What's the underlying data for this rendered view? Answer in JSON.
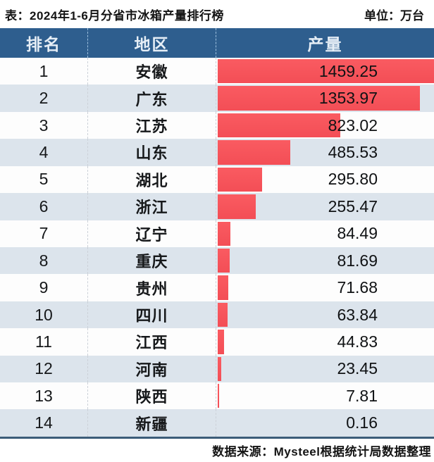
{
  "header": {
    "title": "表：2024年1-6月分省市冰箱产量排行榜",
    "unit": "单位：万台"
  },
  "table": {
    "columns": {
      "rank": "排名",
      "region": "地区",
      "output": "产量"
    }
  },
  "footer": {
    "source": "数据来源：Mysteel根据统计局数据整理"
  },
  "colors": {
    "header_bg": "#2e5e8e",
    "header_text": "#e6eef6",
    "bar_red": "#f6525a",
    "row_alt_bg": "#dce4ec",
    "row_bg": "#fdfdfd",
    "bottom_divider": "#3c5d79"
  },
  "chart_data": {
    "type": "bar",
    "orientation": "horizontal",
    "title": "2024年1-6月分省市冰箱产量排行榜",
    "unit": "万台",
    "xlim": [
      0,
      1459.25
    ],
    "legend": false,
    "grid": false,
    "categories": [
      "安徽",
      "广东",
      "江苏",
      "山东",
      "湖北",
      "浙江",
      "辽宁",
      "重庆",
      "贵州",
      "四川",
      "江西",
      "河南",
      "陕西",
      "新疆"
    ],
    "values": [
      1459.25,
      1353.97,
      823.02,
      485.53,
      295.8,
      255.47,
      84.49,
      81.69,
      71.68,
      63.84,
      44.83,
      23.45,
      7.81,
      0.16
    ],
    "rows": [
      {
        "rank": "1",
        "region": "安徽",
        "value": 1459.25,
        "label": "1459.25"
      },
      {
        "rank": "2",
        "region": "广东",
        "value": 1353.97,
        "label": "1353.97"
      },
      {
        "rank": "3",
        "region": "江苏",
        "value": 823.02,
        "label": "823.02"
      },
      {
        "rank": "4",
        "region": "山东",
        "value": 485.53,
        "label": "485.53"
      },
      {
        "rank": "5",
        "region": "湖北",
        "value": 295.8,
        "label": "295.80"
      },
      {
        "rank": "6",
        "region": "浙江",
        "value": 255.47,
        "label": "255.47"
      },
      {
        "rank": "7",
        "region": "辽宁",
        "value": 84.49,
        "label": "84.49"
      },
      {
        "rank": "8",
        "region": "重庆",
        "value": 81.69,
        "label": "81.69"
      },
      {
        "rank": "9",
        "region": "贵州",
        "value": 71.68,
        "label": "71.68"
      },
      {
        "rank": "10",
        "region": "四川",
        "value": 63.84,
        "label": "63.84"
      },
      {
        "rank": "11",
        "region": "江西",
        "value": 44.83,
        "label": "44.83"
      },
      {
        "rank": "12",
        "region": "河南",
        "value": 23.45,
        "label": "23.45"
      },
      {
        "rank": "13",
        "region": "陕西",
        "value": 7.81,
        "label": "7.81"
      },
      {
        "rank": "14",
        "region": "新疆",
        "value": 0.16,
        "label": "0.16"
      }
    ]
  }
}
